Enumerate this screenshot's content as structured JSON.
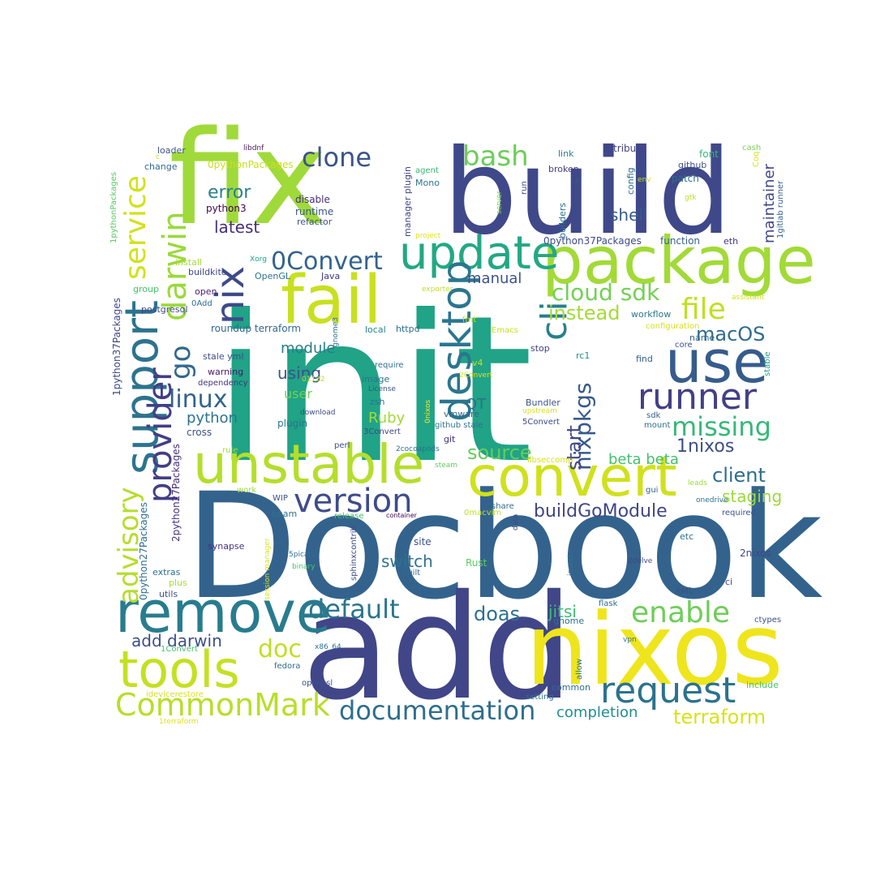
{
  "words": [
    {
      "text": "init",
      "color": "#20a386"
    },
    {
      "text": "Docbook",
      "color": "#33638d"
    },
    {
      "text": "add",
      "color": "#404688"
    },
    {
      "text": "fix",
      "color": "#9fda3a"
    },
    {
      "text": "build",
      "color": "#3f4889"
    },
    {
      "text": "nixos",
      "color": "#efe51c"
    },
    {
      "text": "package",
      "color": "#a2da37"
    },
    {
      "text": "fail",
      "color": "#c8e020"
    },
    {
      "text": "unstable",
      "color": "#b4de2c"
    },
    {
      "text": "convert",
      "color": "#d0e11c"
    },
    {
      "text": "remove",
      "color": "#287c8e"
    },
    {
      "text": "use",
      "color": "#365c8d"
    },
    {
      "text": "update",
      "color": "#22a884"
    },
    {
      "text": "tools",
      "color": "#c5e021"
    },
    {
      "text": "support",
      "color": "#2c738e"
    },
    {
      "text": "desktop",
      "color": "#2a768e"
    },
    {
      "text": "nix",
      "color": "#3e4a89"
    },
    {
      "text": "request",
      "color": "#2c728e"
    },
    {
      "text": "version",
      "color": "#3e4c8a"
    },
    {
      "text": "runner",
      "color": "#424086"
    },
    {
      "text": "CommonMark",
      "color": "#b8de29"
    },
    {
      "text": "cli",
      "color": "#277f8e"
    },
    {
      "text": "darwin",
      "color": "#9bd93c"
    },
    {
      "text": "provider",
      "color": "#433e85"
    },
    {
      "text": "service",
      "color": "#d2e21b"
    },
    {
      "text": "default",
      "color": "#2a768e"
    },
    {
      "text": "documentation",
      "color": "#2e6e8e"
    },
    {
      "text": "enable",
      "color": "#6ece58"
    },
    {
      "text": "advisory",
      "color": "#b5de2b"
    },
    {
      "text": "file",
      "color": "#c2df23"
    },
    {
      "text": "missing",
      "color": "#37b878"
    },
    {
      "text": "go",
      "color": "#31688e"
    },
    {
      "text": "clone",
      "color": "#3a548c"
    },
    {
      "text": "bash",
      "color": "#6ccd5a"
    },
    {
      "text": "0Convert",
      "color": "#33638d"
    },
    {
      "text": "linux",
      "color": "#33638d"
    },
    {
      "text": "cloud sdk",
      "color": "#74d055"
    },
    {
      "text": "doc",
      "color": "#c0df25"
    },
    {
      "text": "nixpkgs",
      "color": "#375a8c"
    },
    {
      "text": "terraform",
      "color": "#d8e219"
    },
    {
      "text": "source",
      "color": "#65cb5e"
    },
    {
      "text": "start",
      "color": "#3f4889"
    },
    {
      "text": "instead",
      "color": "#a5db36"
    },
    {
      "text": "client",
      "color": "#2e6d8e"
    },
    {
      "text": "macOS",
      "color": "#2f6c8e"
    },
    {
      "text": "buildGoModule",
      "color": "#404588"
    },
    {
      "text": "doas",
      "color": "#2c718e"
    },
    {
      "text": "completion",
      "color": "#228d8d"
    },
    {
      "text": "add darwin",
      "color": "#3d4e8a"
    },
    {
      "text": "error",
      "color": "#26828e"
    },
    {
      "text": "shell",
      "color": "#375b8d"
    },
    {
      "text": "jitsi",
      "color": "#3dbc74"
    },
    {
      "text": "switch",
      "color": "#2c738e"
    },
    {
      "text": "1nixos",
      "color": "#3d4e8a"
    },
    {
      "text": "staging",
      "color": "#9bd93c"
    },
    {
      "text": "latest",
      "color": "#472d7b"
    },
    {
      "text": "using",
      "color": "#3b528b"
    },
    {
      "text": "python",
      "color": "#2c738e"
    },
    {
      "text": "Ruby",
      "color": "#a2da37"
    },
    {
      "text": "QT",
      "color": "#2e6e8e"
    },
    {
      "text": "beta beta",
      "color": "#46c06f"
    },
    {
      "text": "maintainer",
      "color": "#404588"
    },
    {
      "text": "module",
      "color": "#287d8e"
    },
    {
      "text": "user",
      "color": "#73d056"
    },
    {
      "text": "manual",
      "color": "#3b528b"
    },
    {
      "text": "2python27Packages",
      "color": "#472f7d"
    },
    {
      "text": "0python27Packages",
      "color": "#2e6e8e"
    },
    {
      "text": "1python37Packages",
      "color": "#3f4788"
    },
    {
      "text": "1pythonPackages",
      "color": "#5cc863"
    },
    {
      "text": "roundup terraform",
      "color": "#31668e"
    },
    {
      "text": "0python37Packages",
      "color": "#3e4a89"
    },
    {
      "text": "0pythonPackages",
      "color": "#c8e020"
    },
    {
      "text": "function",
      "color": "#33638d"
    },
    {
      "text": "attribute",
      "color": "#414487"
    },
    {
      "text": "workflow",
      "color": "#2a778e"
    },
    {
      "text": "python3",
      "color": "#440154"
    },
    {
      "text": "runtime",
      "color": "#39558c"
    },
    {
      "text": "disable",
      "color": "#472c7a"
    },
    {
      "text": "refactor",
      "color": "#3b528b"
    },
    {
      "text": "Mono",
      "color": "#2a768e"
    },
    {
      "text": "agent",
      "color": "#38b977"
    },
    {
      "text": "manager plugin",
      "color": "#414487"
    },
    {
      "text": "0nixos",
      "color": "#fde725"
    },
    {
      "text": "project",
      "color": "#dde318"
    },
    {
      "text": "server",
      "color": "#7fd34e"
    },
    {
      "text": "run",
      "color": "#3e4989"
    },
    {
      "text": "builders",
      "color": "#2c718e"
    },
    {
      "text": "broken",
      "color": "#424086"
    },
    {
      "text": "sh",
      "color": "#39568c"
    },
    {
      "text": "link",
      "color": "#25858e"
    },
    {
      "text": "config",
      "color": "#2e6e8e"
    },
    {
      "text": "env",
      "color": "#c2df23"
    },
    {
      "text": "patch",
      "color": "#2f6c8e"
    },
    {
      "text": "github",
      "color": "#3b528b"
    },
    {
      "text": "font",
      "color": "#35b779"
    },
    {
      "text": "cash",
      "color": "#7ad151"
    },
    {
      "text": "Coq",
      "color": "#d8e219"
    },
    {
      "text": "gtk",
      "color": "#b8de29"
    },
    {
      "text": "1gitlab runner",
      "color": "#33638d"
    },
    {
      "text": "eth",
      "color": "#46337f"
    },
    {
      "text": "loader",
      "color": "#3a548c"
    },
    {
      "text": "libdnf",
      "color": "#481769"
    },
    {
      "text": "change",
      "color": "#31688e"
    },
    {
      "text": "install",
      "color": "#a5db36"
    },
    {
      "text": "buildkite",
      "color": "#3f4889"
    },
    {
      "text": "Xorg",
      "color": "#20a386"
    },
    {
      "text": "OpenGL",
      "color": "#2c738e"
    },
    {
      "text": "Java",
      "color": "#453781"
    },
    {
      "text": "open",
      "color": "#481b6d"
    },
    {
      "text": "0Add",
      "color": "#2e6e8e"
    },
    {
      "text": "group",
      "color": "#4ac16d"
    },
    {
      "text": "postgresql",
      "color": "#3e4a89"
    },
    {
      "text": "exporter",
      "color": "#c0df25"
    },
    {
      "text": "fmt",
      "color": "#c2df23"
    },
    {
      "text": "Emacs",
      "color": "#c8e020"
    },
    {
      "text": "configuration",
      "color": "#d5e21a"
    },
    {
      "text": "gnome3",
      "color": "#2c728e"
    },
    {
      "text": "local",
      "color": "#25848e"
    },
    {
      "text": "httpd",
      "color": "#2e6e8e"
    },
    {
      "text": "name",
      "color": "#31678e"
    },
    {
      "text": "core",
      "color": "#3b528b"
    },
    {
      "text": "stop",
      "color": "#424086"
    },
    {
      "text": "find",
      "color": "#33638d"
    },
    {
      "text": "rc1",
      "color": "#21918c"
    },
    {
      "text": "assistant",
      "color": "#d0e11c"
    },
    {
      "text": "stable",
      "color": "#1f9e89"
    },
    {
      "text": "stale yml",
      "color": "#3e4c8a"
    },
    {
      "text": "warning",
      "color": "#48186a"
    },
    {
      "text": "dependency",
      "color": "#46337f"
    },
    {
      "text": "require",
      "color": "#2e6e8e"
    },
    {
      "text": "01122",
      "color": "#bddf26"
    },
    {
      "text": "image",
      "color": "#2c728e"
    },
    {
      "text": "v4",
      "color": "#c0df25"
    },
    {
      "text": "2Convert",
      "color": "#dde318"
    },
    {
      "text": "License",
      "color": "#3b528b"
    },
    {
      "text": "zsh",
      "color": "#2c728e"
    },
    {
      "text": "download",
      "color": "#3f4889"
    },
    {
      "text": "vmware",
      "color": "#31678e"
    },
    {
      "text": "Bundler",
      "color": "#3b528b"
    },
    {
      "text": "upstream",
      "color": "#d5e21a"
    },
    {
      "text": "sdk",
      "color": "#33638d"
    },
    {
      "text": "mount",
      "color": "#2c718e"
    },
    {
      "text": "5Convert",
      "color": "#3f4889"
    },
    {
      "text": "github stale",
      "color": "#2c728e"
    },
    {
      "text": "3Convert",
      "color": "#3e4a89"
    },
    {
      "text": "git",
      "color": "#46337f"
    },
    {
      "text": "plugin",
      "color": "#2c738e"
    },
    {
      "text": "cross",
      "color": "#3b528b"
    },
    {
      "text": "perl",
      "color": "#3e4c8a"
    },
    {
      "text": "2cocoapods",
      "color": "#2c718e"
    },
    {
      "text": "rule",
      "color": "#a5db36"
    },
    {
      "text": "steam",
      "color": "#63cb5f"
    },
    {
      "text": "libseccomp",
      "color": "#d5e21a"
    },
    {
      "text": "leads",
      "color": "#9bd93c"
    },
    {
      "text": "gui",
      "color": "#33638d"
    },
    {
      "text": "work",
      "color": "#a0da39"
    },
    {
      "text": "WIP",
      "color": "#3b528b"
    },
    {
      "text": "beam",
      "color": "#2c728e"
    },
    {
      "text": "release",
      "color": "#4ac16d"
    },
    {
      "text": "container",
      "color": "#440154"
    },
    {
      "text": "0macvim",
      "color": "#c2df23"
    },
    {
      "text": "share",
      "color": "#2e6e8e"
    },
    {
      "text": "data",
      "color": "#3e4a89"
    },
    {
      "text": "required",
      "color": "#3b528b"
    },
    {
      "text": "synapse",
      "color": "#46337f"
    },
    {
      "text": "site",
      "color": "#3b528b"
    },
    {
      "text": "session manager",
      "color": "#dde318"
    },
    {
      "text": "5picard",
      "color": "#2e6e8e"
    },
    {
      "text": "binary",
      "color": "#4ac16d"
    },
    {
      "text": "sphinxcontrib",
      "color": "#3e4a89"
    },
    {
      "text": "etc",
      "color": "#2c718e"
    },
    {
      "text": "insect",
      "color": "#2c728e"
    },
    {
      "text": "2delve",
      "color": "#3f4889"
    },
    {
      "text": "2nixos",
      "color": "#404588"
    },
    {
      "text": "extras",
      "color": "#2e6e8e"
    },
    {
      "text": "plus",
      "color": "#a5db36"
    },
    {
      "text": "utils",
      "color": "#3b528b"
    },
    {
      "text": "Rust",
      "color": "#63cb5f"
    },
    {
      "text": "built",
      "color": "#2e6e8e"
    },
    {
      "text": "XML",
      "color": "#3b528b"
    },
    {
      "text": "ci",
      "color": "#3e4c8a"
    },
    {
      "text": "flask",
      "color": "#2e6e8e"
    },
    {
      "text": "gnome",
      "color": "#2c718e"
    },
    {
      "text": "ctypes",
      "color": "#3b528b"
    },
    {
      "text": "1Convert",
      "color": "#4ac16d"
    },
    {
      "text": "x86_64",
      "color": "#2c728e"
    },
    {
      "text": "v0",
      "color": "#3f4889"
    },
    {
      "text": "vpn",
      "color": "#2c738e"
    },
    {
      "text": "allow",
      "color": "#2c728e"
    },
    {
      "text": "fedora",
      "color": "#2e6e8e"
    },
    {
      "text": "openssl",
      "color": "#3b528b"
    },
    {
      "text": "common",
      "color": "#2e6e8e"
    },
    {
      "text": "setting",
      "color": "#2c728e"
    },
    {
      "text": "include",
      "color": "#4ac16d"
    },
    {
      "text": "idevicerestore",
      "color": "#d8e219"
    },
    {
      "text": "1terraform",
      "color": "#dde318"
    },
    {
      "text": "onedrive",
      "color": "#2c718e"
    },
    {
      "text": "c",
      "color": "#c2df23"
    }
  ]
}
